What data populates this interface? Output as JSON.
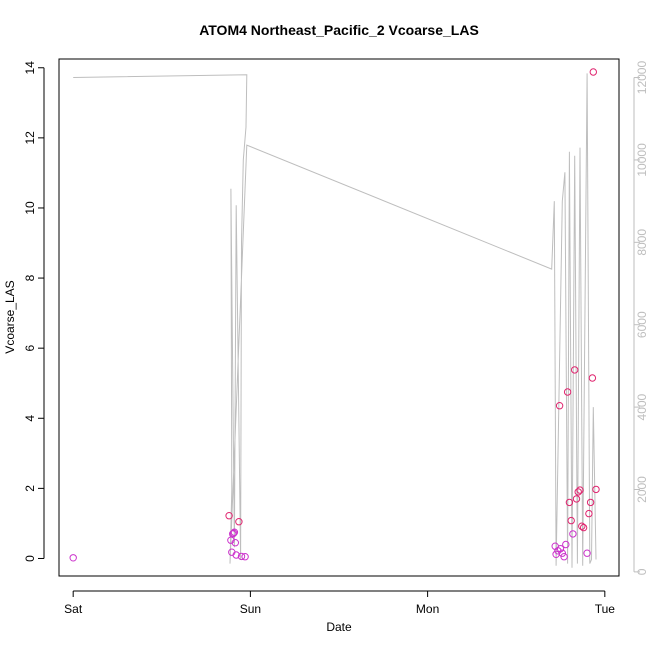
{
  "chart_data": {
    "type": "scatter",
    "title": "ATOM4 Northeast_Pacific_2 Vcoarse_LAS",
    "xlabel": "Date",
    "ylabel": "Vcoarse_LAS",
    "x_unit": "days since Sat 00:00",
    "xlim": [
      -0.08,
      3.08
    ],
    "x_ticks": [
      {
        "label": "Sat",
        "value": 0
      },
      {
        "label": "Sun",
        "value": 1
      },
      {
        "label": "Mon",
        "value": 2
      },
      {
        "label": "Tue",
        "value": 3
      }
    ],
    "ylim": [
      -0.5,
      14.25
    ],
    "y_ticks": [
      0,
      2,
      4,
      6,
      8,
      10,
      12,
      14
    ],
    "y2lim": [
      -100,
      12450
    ],
    "y2_ticks": [
      0,
      2000,
      4000,
      6000,
      8000,
      10000,
      12000
    ],
    "colors": {
      "points_low": "#cc33cc",
      "points_high": "#e0256f",
      "secondary_line": "#bebebe",
      "axis": "#000000"
    },
    "series": [
      {
        "kind": "points",
        "axis": "left",
        "points": [
          [
            0.0,
            0.02
          ],
          [
            0.88,
            1.22
          ],
          [
            0.89,
            0.52
          ],
          [
            0.895,
            0.18
          ],
          [
            0.9,
            0.7
          ],
          [
            0.905,
            0.72
          ],
          [
            0.91,
            0.75
          ],
          [
            0.915,
            0.45
          ],
          [
            0.92,
            0.1
          ],
          [
            0.935,
            1.05
          ],
          [
            0.95,
            0.06
          ],
          [
            0.97,
            0.05
          ],
          [
            2.72,
            0.35
          ],
          [
            2.725,
            0.12
          ],
          [
            2.735,
            0.22
          ],
          [
            2.745,
            4.36
          ],
          [
            2.75,
            0.28
          ],
          [
            2.76,
            0.15
          ],
          [
            2.77,
            0.05
          ],
          [
            2.78,
            0.4
          ],
          [
            2.79,
            4.75
          ],
          [
            2.8,
            1.6
          ],
          [
            2.81,
            1.08
          ],
          [
            2.82,
            0.7
          ],
          [
            2.83,
            5.38
          ],
          [
            2.84,
            1.7
          ],
          [
            2.85,
            1.9
          ],
          [
            2.86,
            1.95
          ],
          [
            2.87,
            0.92
          ],
          [
            2.88,
            0.88
          ],
          [
            2.9,
            0.15
          ],
          [
            2.91,
            1.28
          ],
          [
            2.92,
            1.6
          ],
          [
            2.93,
            5.15
          ],
          [
            2.935,
            13.88
          ],
          [
            2.95,
            1.97
          ]
        ]
      },
      {
        "kind": "line",
        "axis": "right",
        "points": [
          [
            0.0,
            12000
          ],
          [
            0.98,
            12070
          ],
          [
            0.975,
            10800
          ],
          [
            0.96,
            10000
          ],
          [
            0.95,
            8000
          ],
          [
            0.945,
            300
          ],
          [
            0.92,
            8900
          ],
          [
            0.91,
            600
          ],
          [
            0.89,
            9300
          ],
          [
            0.895,
            2000
          ],
          [
            0.885,
            200
          ],
          [
            0.98,
            10360
          ],
          [
            2.7,
            7350
          ],
          [
            2.715,
            9000
          ],
          [
            2.725,
            150
          ],
          [
            2.76,
            9000
          ],
          [
            2.775,
            9700
          ],
          [
            2.79,
            200
          ],
          [
            2.8,
            10200
          ],
          [
            2.815,
            100
          ],
          [
            2.83,
            10100
          ],
          [
            2.845,
            200
          ],
          [
            2.86,
            10300
          ],
          [
            2.875,
            150
          ],
          [
            2.9,
            12100
          ],
          [
            2.915,
            200
          ],
          [
            2.925,
            300
          ],
          [
            2.935,
            4000
          ],
          [
            2.95,
            300
          ]
        ]
      }
    ]
  }
}
